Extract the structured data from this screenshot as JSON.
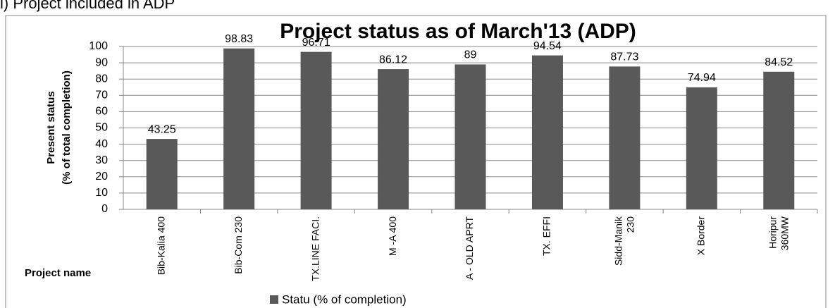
{
  "caption": "i) Project included in ADP",
  "chart_data": {
    "type": "bar",
    "title": "Project  status as of March'13 (ADP)",
    "y_label": [
      "Present status",
      "(% of total completion)"
    ],
    "x_label": "Project name",
    "categories": [
      "Bib-Kalia 400",
      "Bib-Com 230",
      "TX.LINE FACI.",
      "M -A 400",
      "A - OLD APRT",
      "TX. EFFI",
      "Sidd-Manik\n230",
      "X Border",
      "Horipur\n360MW"
    ],
    "series": [
      {
        "name": "Statu (% of completion)",
        "color": "#595959",
        "values": [
          43.25,
          98.83,
          96.71,
          86.12,
          89,
          94.54,
          87.73,
          74.94,
          84.52
        ]
      }
    ],
    "ylim": [
      0,
      100
    ],
    "yticks": [
      0,
      10,
      20,
      30,
      40,
      50,
      60,
      70,
      80,
      90,
      100
    ],
    "grid": true,
    "legend": "bottom"
  }
}
